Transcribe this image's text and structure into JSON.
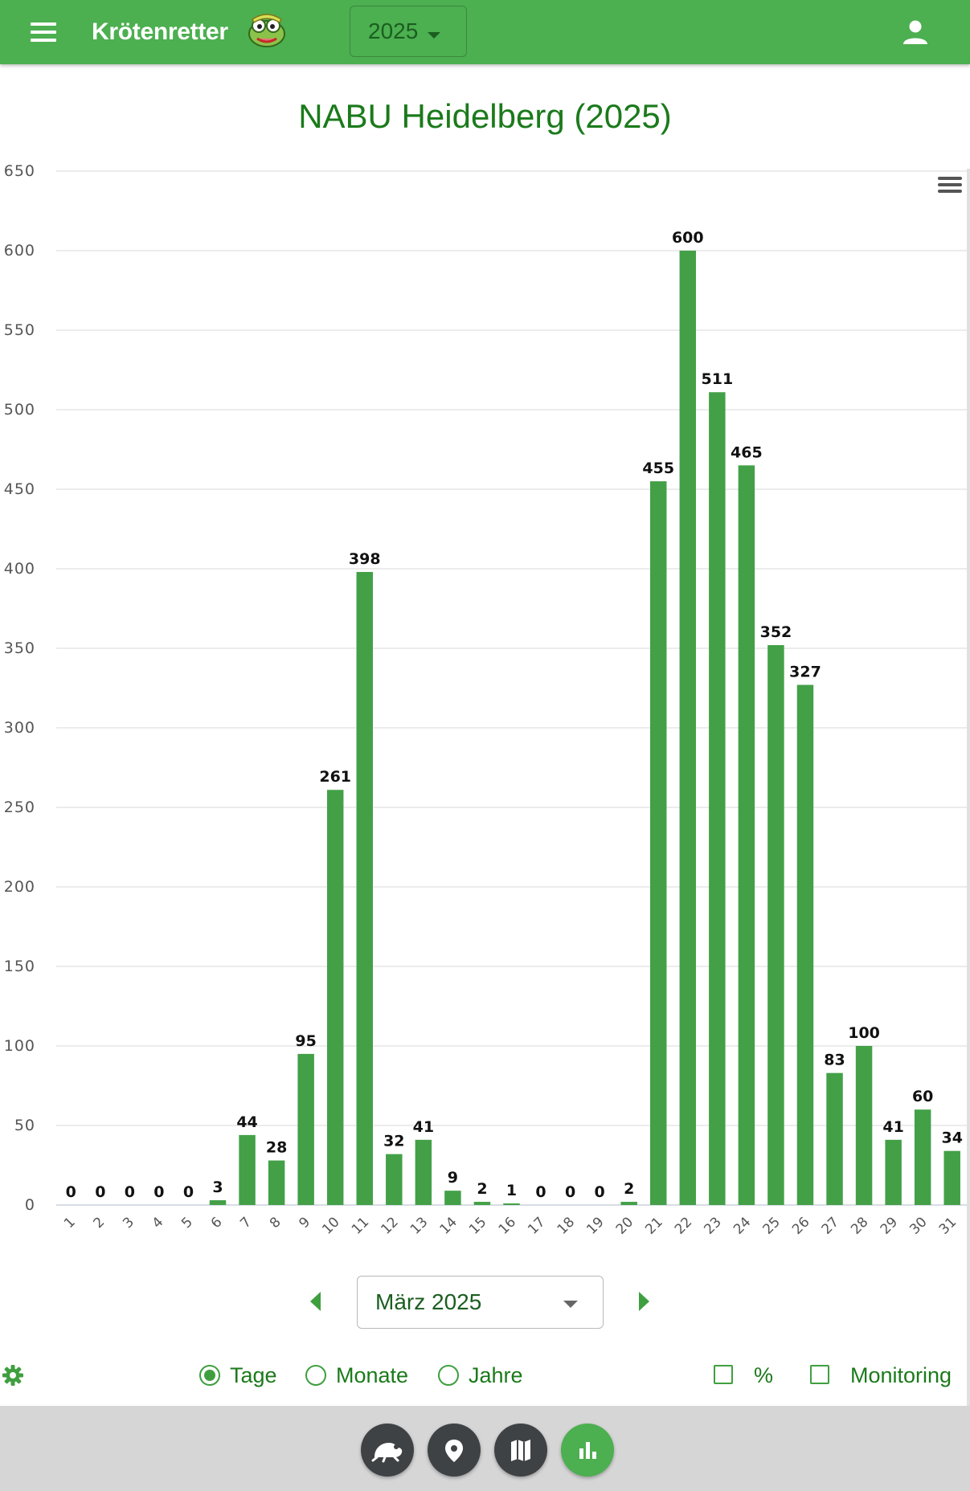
{
  "app": {
    "title": "Krötenretter",
    "year": "2025"
  },
  "chart_data": {
    "type": "bar",
    "title": "NABU Heidelberg (2025)",
    "categories": [
      "1",
      "2",
      "3",
      "4",
      "5",
      "6",
      "7",
      "8",
      "9",
      "10",
      "11",
      "12",
      "13",
      "14",
      "15",
      "16",
      "17",
      "18",
      "19",
      "20",
      "21",
      "22",
      "23",
      "24",
      "25",
      "26",
      "27",
      "28",
      "29",
      "30",
      "31"
    ],
    "values": [
      0,
      0,
      0,
      0,
      0,
      3,
      44,
      28,
      95,
      261,
      398,
      32,
      41,
      9,
      2,
      1,
      0,
      0,
      0,
      2,
      455,
      600,
      511,
      465,
      352,
      327,
      83,
      100,
      41,
      60,
      34
    ],
    "yticks": [
      0,
      50,
      100,
      150,
      200,
      250,
      300,
      350,
      400,
      450,
      500,
      550,
      600,
      650
    ],
    "ylim": [
      0,
      650
    ],
    "grid": true,
    "data_labels": true,
    "bar_color": "#43a047"
  },
  "controls": {
    "month": "März 2025",
    "granularity": [
      {
        "label": "Tage",
        "selected": true
      },
      {
        "label": "Monate",
        "selected": false
      },
      {
        "label": "Jahre",
        "selected": false
      }
    ],
    "percent_label": "%",
    "monitoring_label": "Monitoring"
  },
  "colors": {
    "primary": "#4caf50",
    "title_green": "#1b7a1b",
    "fab_dark": "#3f4245"
  },
  "bottom_nav": [
    {
      "icon": "toad-icon",
      "active": false
    },
    {
      "icon": "location-pin-icon",
      "active": false
    },
    {
      "icon": "map-icon",
      "active": false
    },
    {
      "icon": "bar-chart-icon",
      "active": true
    }
  ]
}
